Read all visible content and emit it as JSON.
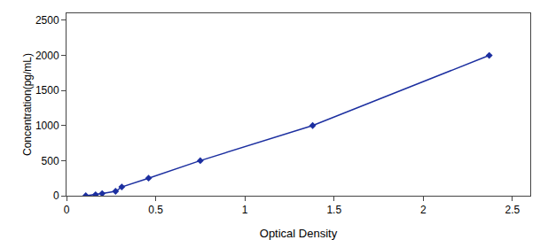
{
  "chart_data": {
    "type": "line",
    "x": [
      0.108,
      0.163,
      0.2,
      0.275,
      0.31,
      0.46,
      0.75,
      1.38,
      2.37
    ],
    "values": [
      0,
      15,
      31,
      63,
      125,
      250,
      500,
      1000,
      2000
    ],
    "color": "#1C2FA0",
    "marker": "diamond",
    "line_style": "solid",
    "xlabel": "Optical Density",
    "ylabel": "Concentration(pg/mL)",
    "xlim": [
      0,
      2.6
    ],
    "ylim": [
      0,
      2600
    ],
    "xticks": [
      0,
      0.5,
      1,
      1.5,
      2,
      2.5
    ],
    "yticks": [
      0,
      500,
      1000,
      1500,
      2000,
      2500
    ],
    "grid": false
  }
}
